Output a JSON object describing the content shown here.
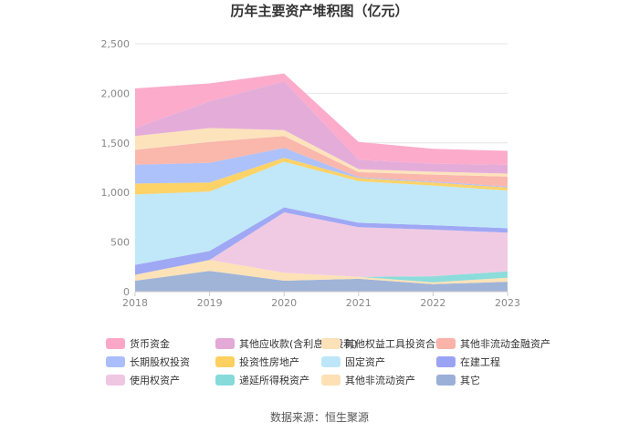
{
  "chart_data": {
    "type": "area",
    "stacked": true,
    "title": "历年主要资产堆积图（亿元）",
    "x": [
      "2018",
      "2019",
      "2020",
      "2021",
      "2022",
      "2023"
    ],
    "y_ticks": [
      "0",
      "500",
      "1,000",
      "1,500",
      "2,000",
      "2,500"
    ],
    "ylim": [
      0,
      2500
    ],
    "series": [
      {
        "name": "其它",
        "color": "#9bb0d6",
        "values": [
          110,
          210,
          110,
          130,
          75,
          100
        ]
      },
      {
        "name": "其他非流动资产",
        "color": "#fde0b3",
        "values": [
          60,
          110,
          80,
          20,
          20,
          40
        ]
      },
      {
        "name": "递延所得税资产",
        "color": "#86dada",
        "values": [
          0,
          0,
          0,
          0,
          60,
          65
        ]
      },
      {
        "name": "使用权资产",
        "color": "#efc7e2",
        "values": [
          0,
          0,
          610,
          500,
          470,
          390
        ]
      },
      {
        "name": "在建工程",
        "color": "#9aa3f3",
        "values": [
          100,
          90,
          50,
          45,
          45,
          45
        ]
      },
      {
        "name": "固定资产",
        "color": "#bde7f8",
        "values": [
          710,
          600,
          460,
          420,
          400,
          380
        ]
      },
      {
        "name": "投资性房地产",
        "color": "#fdd05f",
        "values": [
          110,
          90,
          40,
          30,
          30,
          30
        ]
      },
      {
        "name": "长期股权投资",
        "color": "#a9befa",
        "values": [
          190,
          200,
          100,
          10,
          10,
          10
        ]
      },
      {
        "name": "其他非流动金融资产",
        "color": "#fab3a8",
        "values": [
          150,
          210,
          120,
          50,
          70,
          100
        ]
      },
      {
        "name": "其他权益工具投资合计",
        "color": "#fde1b8",
        "values": [
          140,
          140,
          60,
          30,
          30,
          30
        ]
      },
      {
        "name": "其他应收款(含利息和股利)",
        "color": "#e3a9d7",
        "values": [
          80,
          270,
          490,
          95,
          80,
          90
        ]
      },
      {
        "name": "货币资金",
        "color": "#fca7c8",
        "values": [
          400,
          180,
          80,
          180,
          150,
          140
        ]
      }
    ],
    "legend_order": [
      "货币资金",
      "其他应收款(含利息和股利)",
      "其他权益工具投资合计",
      "其他非流动金融资产",
      "长期股权投资",
      "投资性房地产",
      "固定资产",
      "在建工程",
      "使用权资产",
      "递延所得税资产",
      "其他非流动资产",
      "其它"
    ],
    "source": "数据来源：恒生聚源"
  }
}
